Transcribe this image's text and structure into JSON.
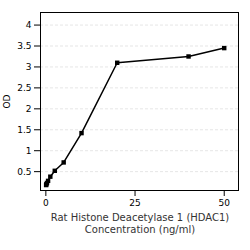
{
  "chart_data": {
    "type": "line",
    "x": [
      0.078,
      0.156,
      0.313,
      0.625,
      1.25,
      2.5,
      5,
      10,
      20,
      40,
      50
    ],
    "values": [
      0.18,
      0.2,
      0.23,
      0.28,
      0.38,
      0.52,
      0.72,
      1.42,
      3.1,
      3.25,
      3.45
    ],
    "xlabel": "Rat Histone Deacetylase 1 (HDAC1)\nConcentration (ng/ml)",
    "ylabel": "OD",
    "xlim": [
      -1.5,
      54
    ],
    "xticks": [
      0,
      25,
      50
    ],
    "ylim": [
      0.05,
      4.3
    ],
    "yticks": [
      0.5,
      1,
      1.5,
      2,
      2.5,
      3,
      3.5,
      4
    ],
    "grid": "y",
    "marker": "square"
  }
}
